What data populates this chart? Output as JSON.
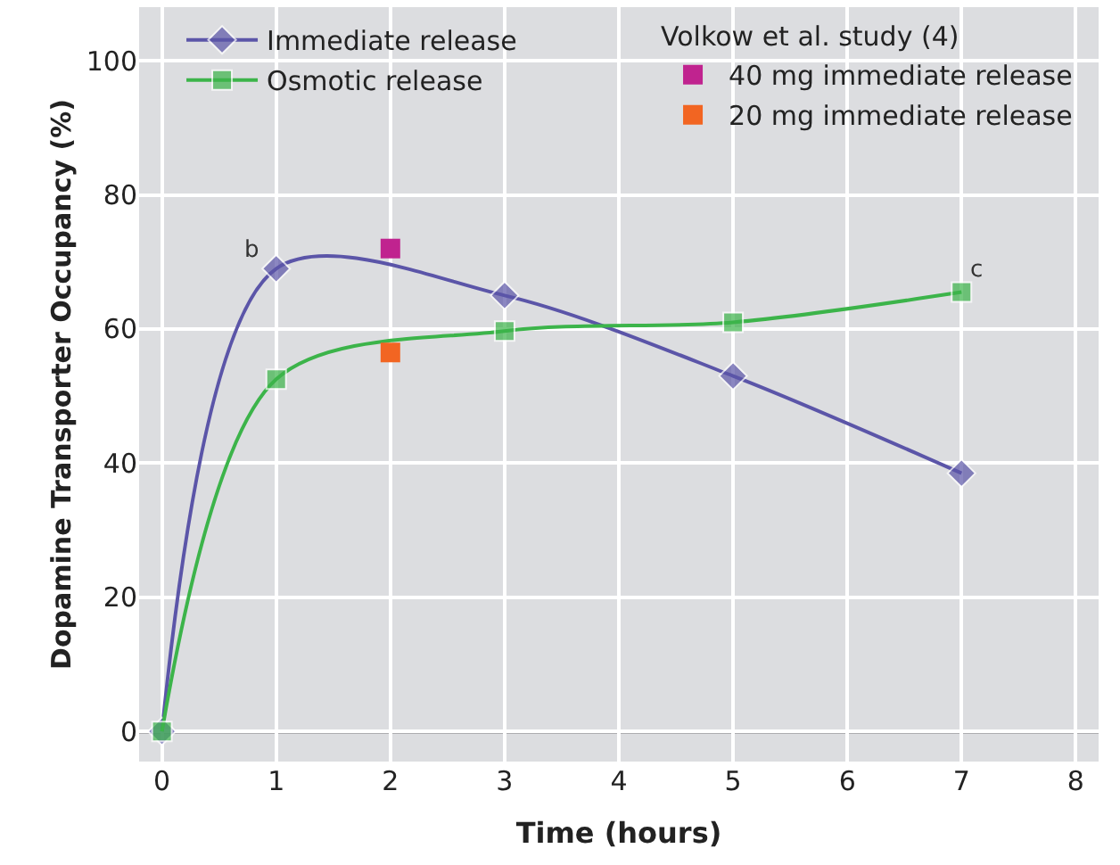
{
  "chart_data": {
    "type": "line",
    "xlabel": "Time (hours)",
    "ylabel": "Dopamine Transporter Occupancy (%)",
    "legend_title": "Volkow et al. study (4)",
    "xlim": [
      -0.2,
      8.2
    ],
    "xticks": [
      0,
      1,
      2,
      3,
      4,
      5,
      6,
      7,
      8
    ],
    "ylim": [
      -4.5,
      108
    ],
    "yticks": [
      0,
      20,
      40,
      60,
      80,
      100
    ],
    "grid": true,
    "legend": "top",
    "series": [
      {
        "name": "Immediate release",
        "color": "#5b55a8",
        "marker": "diamond",
        "x": [
          0,
          1,
          3,
          5,
          7
        ],
        "values": [
          0,
          69,
          65,
          53,
          38.5
        ]
      },
      {
        "name": "Osmotic release",
        "color": "#3cb44a",
        "marker": "square",
        "x": [
          0,
          1,
          3,
          5,
          7
        ],
        "values": [
          0,
          52.5,
          59.7,
          61,
          65.5
        ]
      },
      {
        "name": "40 mg immediate release",
        "type": "scatter",
        "color": "#c0238f",
        "marker": "square",
        "x": [
          2
        ],
        "values": [
          72
        ]
      },
      {
        "name": "20 mg immediate release",
        "type": "scatter",
        "color": "#f26522",
        "marker": "square",
        "x": [
          2
        ],
        "values": [
          56.5
        ]
      }
    ],
    "ref_lines": [
      {
        "axis": "y",
        "value": 0,
        "color": "#222222"
      }
    ],
    "annotations": [
      {
        "text": "b",
        "x": 1,
        "y": 69
      },
      {
        "text": "c",
        "x": 7,
        "y": 65.5
      }
    ]
  }
}
